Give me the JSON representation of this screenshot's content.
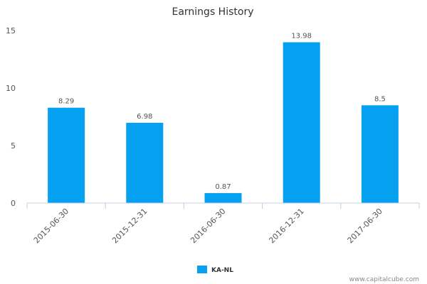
{
  "chart_data": {
    "type": "bar",
    "title": "Earnings History",
    "categories": [
      "2015-06-30",
      "2015-12-31",
      "2016-06-30",
      "2016-12-31",
      "2017-06-30"
    ],
    "series": [
      {
        "name": "KA-NL",
        "values": [
          8.29,
          6.98,
          0.87,
          13.98,
          8.5
        ],
        "data_labels": [
          "8.29",
          "6.98",
          "0.87",
          "13.98",
          "8.5"
        ],
        "color": "#05a0f0"
      }
    ],
    "ylim": [
      0,
      15
    ],
    "yticks": [
      "0",
      "5",
      "10",
      "15"
    ],
    "grid": false,
    "legend_position": "bottom-center"
  },
  "credit": "www.capitalcube.com"
}
